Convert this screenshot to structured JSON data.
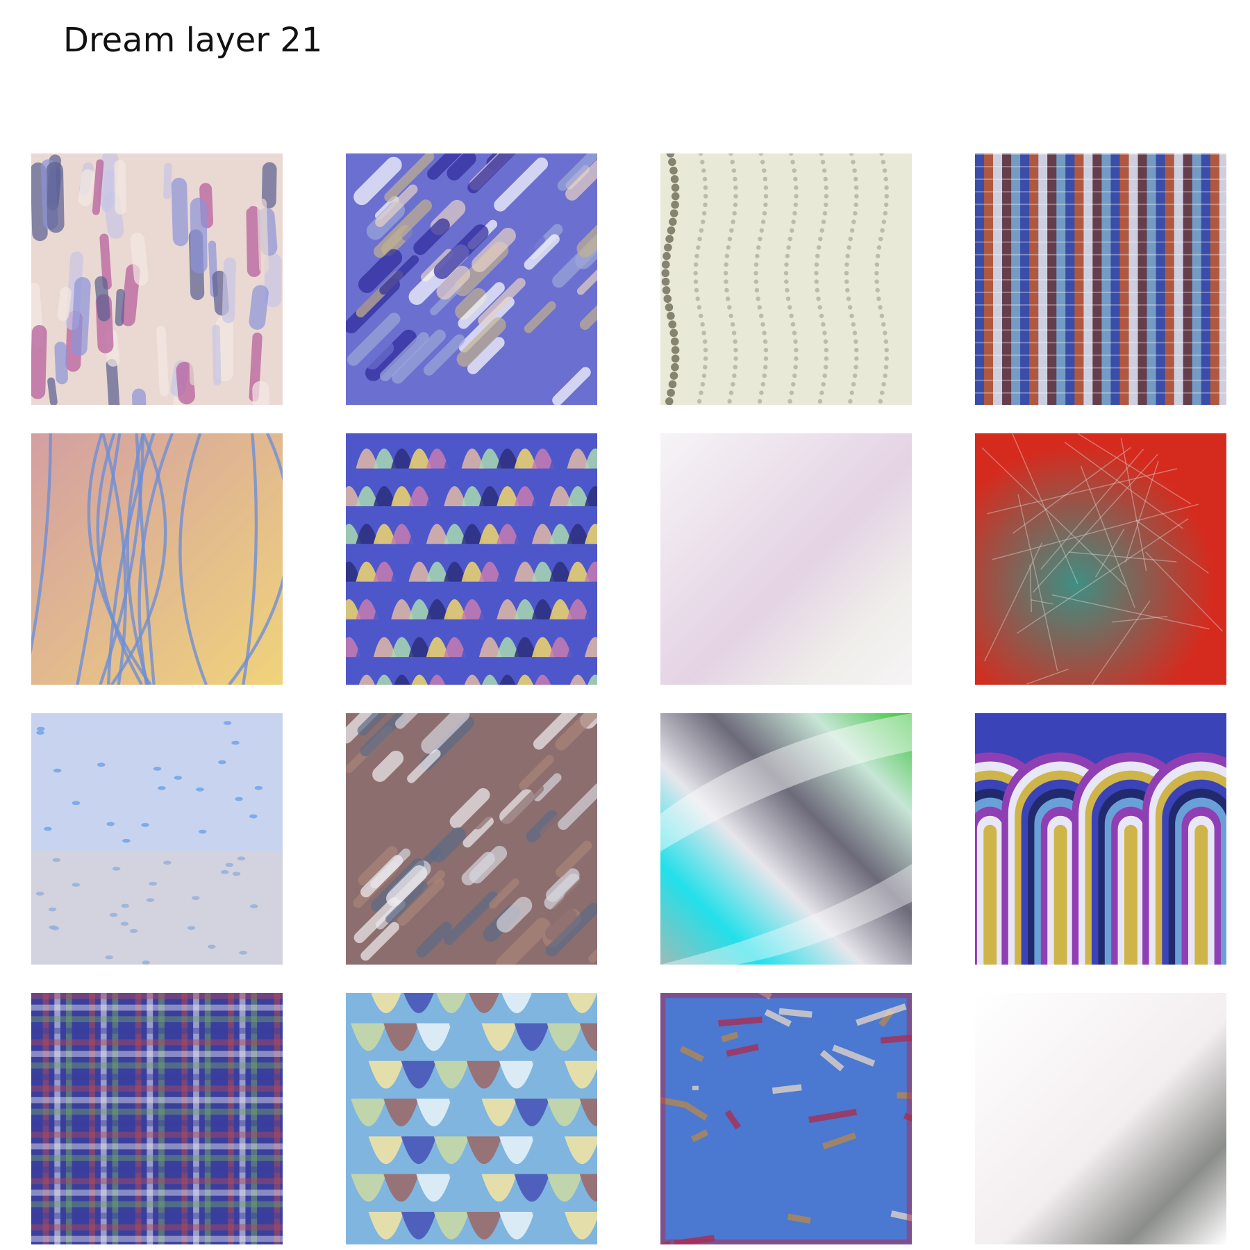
{
  "figure": {
    "title": "Dream layer 21"
  },
  "tiles": [
    {
      "row": 1,
      "col": 1,
      "palette": [
        "#ead9d3",
        "#c9c6e6",
        "#8d94d8",
        "#b45a9a",
        "#5a5f8f",
        "#f4e9e4"
      ],
      "pattern": "feather-vertical"
    },
    {
      "row": 1,
      "col": 2,
      "palette": [
        "#6b6fd0",
        "#e7d2c6",
        "#c3b38e",
        "#9ea8d8",
        "#2e2a9a",
        "#ffffff"
      ],
      "pattern": "diagonal-plumes"
    },
    {
      "row": 1,
      "col": 3,
      "palette": [
        "#e9e9d8",
        "#d7d2e2",
        "#6a6a55",
        "#c8c49e",
        "#f4f4ee"
      ],
      "pattern": "vertical-dotted-lines"
    },
    {
      "row": 1,
      "col": 4,
      "palette": [
        "#3b4ea8",
        "#c65a2d",
        "#e9e6e8",
        "#6d3b3b",
        "#7fa9c9",
        "#f2f2f2"
      ],
      "pattern": "vertical-stripes"
    },
    {
      "row": 2,
      "col": 1,
      "palette": [
        "#d39fa2",
        "#e5c38a",
        "#6e8fd6",
        "#b96a8f",
        "#f0d37b"
      ],
      "pattern": "cracked-veins"
    },
    {
      "row": 2,
      "col": 2,
      "palette": [
        "#4d57c9",
        "#e2b8a6",
        "#a9d8b1",
        "#2b2f7e",
        "#f1d66c",
        "#c77bb0"
      ],
      "pattern": "horizontal-waves"
    },
    {
      "row": 2,
      "col": 3,
      "palette": [
        "#efeeea",
        "#e4d3e4",
        "#d9e4d4",
        "#9a9a94",
        "#f6f4f6"
      ],
      "pattern": "soft-haze"
    },
    {
      "row": 2,
      "col": 4,
      "palette": [
        "#d52b1e",
        "#3f8f84",
        "#b4524a",
        "#6fa99a",
        "#e6e2e2"
      ],
      "pattern": "red-teal-haze"
    },
    {
      "row": 3,
      "col": 1,
      "palette": [
        "#c8d4ef",
        "#e9c3c0",
        "#6aa0ea",
        "#d9b3e3",
        "#f0d2b8"
      ],
      "pattern": "blue-dots"
    },
    {
      "row": 3,
      "col": 2,
      "palette": [
        "#8c6e6e",
        "#d7d7df",
        "#5d6b86",
        "#a98478",
        "#f0eef2"
      ],
      "pattern": "diagonal-plumes-dark"
    },
    {
      "row": 3,
      "col": 3,
      "palette": [
        "#9bbcb8",
        "#22e0ea",
        "#e6e6ec",
        "#6d6a7a",
        "#c7e6d6",
        "#3bc23b"
      ],
      "pattern": "teal-sweep"
    },
    {
      "row": 3,
      "col": 4,
      "palette": [
        "#3b43b8",
        "#cfb44a",
        "#e7e7f5",
        "#8f3fb3",
        "#6aa0d8",
        "#222a6e"
      ],
      "pattern": "arches"
    },
    {
      "row": 4,
      "col": 1,
      "palette": [
        "#3a3f9e",
        "#b24a5a",
        "#eaeaf0",
        "#6fa46a",
        "#c9a0c9"
      ],
      "pattern": "plaid"
    },
    {
      "row": 4,
      "col": 2,
      "palette": [
        "#7fb5de",
        "#efe3a4",
        "#4a56b8",
        "#c9d8a6",
        "#9a6a6a",
        "#e6f1f8"
      ],
      "pattern": "scales"
    },
    {
      "row": 4,
      "col": 3,
      "palette": [
        "#4b78d0",
        "#b9884a",
        "#e9d8c8",
        "#b02a4a",
        "#2a2a8a"
      ],
      "pattern": "network"
    },
    {
      "row": 4,
      "col": 4,
      "palette": [
        "#f3eef0",
        "#8b8d8a",
        "#d9dede",
        "#c7b7c0",
        "#ffffff"
      ],
      "pattern": "diagonal-shadow"
    }
  ]
}
